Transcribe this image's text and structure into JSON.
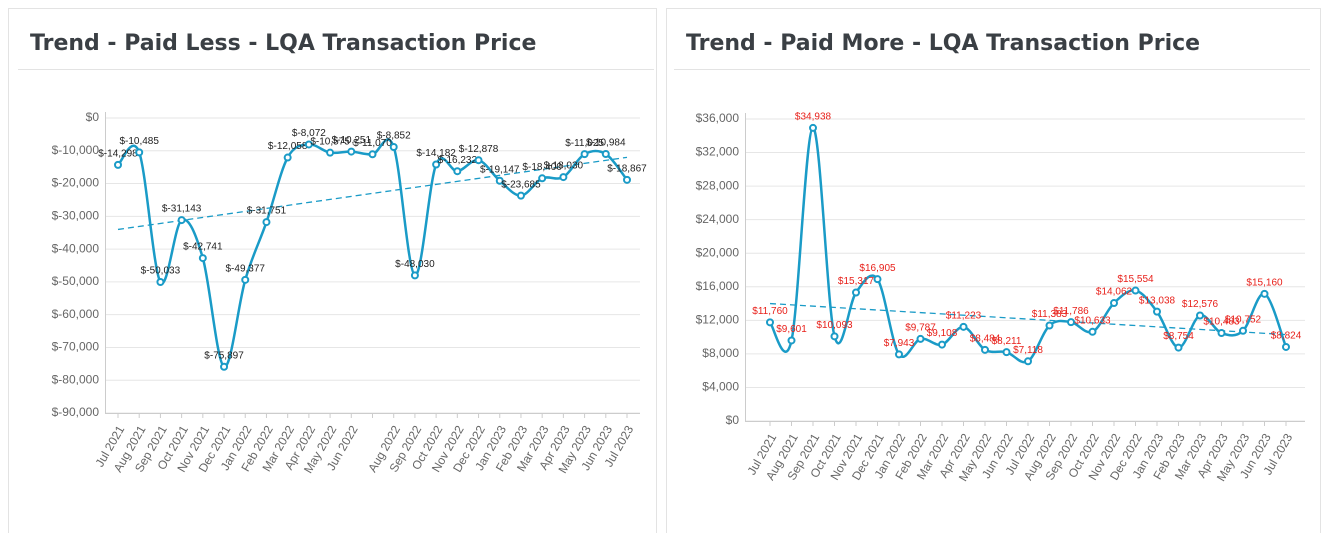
{
  "chart_data": [
    {
      "type": "line",
      "title": "Trend - Paid Less - LQA Transaction Price",
      "categories": [
        "Jul 2021",
        "Aug 2021",
        "Sep 2021",
        "Oct 2021",
        "Nov 2021",
        "Dec 2021",
        "Jan 2022",
        "Feb 2022",
        "Mar 2022",
        "Apr 2022",
        "May 2022",
        "Jun 2022",
        null,
        "Aug 2022",
        "Sep 2022",
        "Oct 2022",
        "Nov 2022",
        "Dec 2022",
        "Jan 2023",
        "Feb 2023",
        "Mar 2023",
        "Apr 2023",
        "May 2023",
        "Jun 2023",
        "Jul 2023"
      ],
      "values": [
        -14298,
        -10485,
        -50033,
        -31143,
        -42741,
        -75897,
        -49377,
        -31751,
        -12058,
        -8072,
        -10575,
        -10251,
        -11070,
        -8852,
        -48030,
        -14182,
        -16232,
        -12878,
        -19147,
        -23685,
        -18400,
        -18030,
        -11025,
        -10984,
        -18867
      ],
      "value_labels": [
        "$-14,298",
        "$-10,485",
        "$-50,033",
        "$-31,143",
        "$-42,741",
        "$-75,897",
        "$-49,377",
        "$-31,751",
        "$-12,058",
        "$-8,072",
        "$-10,575",
        "$-10,251",
        "$-11,070",
        "$-8,852",
        "$-48,030",
        "$-14,182",
        "$-16,232",
        "$-12,878",
        "$-19,147",
        "$-23,685",
        "$-18,400",
        "$-18,030",
        "$-11,025",
        "$-10,984",
        "$-18,867"
      ],
      "color": "#1a9bc7",
      "label_color": "#222222",
      "trend": [
        -34000,
        -12000
      ],
      "ylim": [
        -90000,
        0
      ],
      "yticks": [
        {
          "value": -90000,
          "label": "$-90,000"
        },
        {
          "value": -80000,
          "label": "$-80,000"
        },
        {
          "value": -70000,
          "label": "$-70,000"
        },
        {
          "value": -60000,
          "label": "$-60,000"
        },
        {
          "value": -50000,
          "label": "$-50,000"
        },
        {
          "value": -40000,
          "label": "$-40,000"
        },
        {
          "value": -30000,
          "label": "$-30,000"
        },
        {
          "value": -20000,
          "label": "$-20,000"
        },
        {
          "value": -10000,
          "label": "$-10,000"
        },
        {
          "value": 0,
          "label": "$0"
        }
      ],
      "grid": true
    },
    {
      "type": "line",
      "title": "Trend - Paid More - LQA Transaction Price",
      "categories": [
        "Jul 2021",
        "Aug 2021",
        "Sep 2021",
        "Oct 2021",
        "Nov 2021",
        "Dec 2021",
        "Jan 2022",
        "Feb 2022",
        "Mar 2022",
        "Apr 2022",
        "May 2022",
        "Jun 2022",
        "Jul 2022",
        "Aug 2022",
        "Sep 2022",
        "Oct 2022",
        "Nov 2022",
        "Dec 2022",
        "Jan 2023",
        "Feb 2023",
        "Mar 2023",
        "Apr 2023",
        "May 2023",
        "Jun 2023",
        "Jul 2023"
      ],
      "values": [
        11760,
        9601,
        34938,
        10093,
        15317,
        16905,
        7943,
        9787,
        9108,
        11223,
        8484,
        8211,
        7118,
        11383,
        11786,
        10633,
        14062,
        15554,
        13038,
        8754,
        12576,
        10483,
        10752,
        15160,
        8824
      ],
      "value_labels": [
        "$11,760",
        "$9,601",
        "$34,938",
        "$10,093",
        "$15,317",
        "$16,905",
        "$7,943",
        "$9,787",
        "$9,108",
        "$11,223",
        "$8,484",
        "$8,211",
        "$7,118",
        "$11,383",
        "$11,786",
        "$10,633",
        "$14,062",
        "$15,554",
        "$13,038",
        "$8,754",
        "$12,576",
        "$10,483",
        "$10,752",
        "$15,160",
        "$8,824"
      ],
      "color": "#1a9bc7",
      "label_color": "#e8201a",
      "trend": [
        14000,
        10300
      ],
      "ylim": [
        0,
        36000
      ],
      "yticks": [
        {
          "value": 0,
          "label": "$0"
        },
        {
          "value": 4000,
          "label": "$4,000"
        },
        {
          "value": 8000,
          "label": "$8,000"
        },
        {
          "value": 12000,
          "label": "$12,000"
        },
        {
          "value": 16000,
          "label": "$16,000"
        },
        {
          "value": 20000,
          "label": "$20,000"
        },
        {
          "value": 24000,
          "label": "$24,000"
        },
        {
          "value": 28000,
          "label": "$28,000"
        },
        {
          "value": 32000,
          "label": "$32,000"
        },
        {
          "value": 36000,
          "label": "$36,000"
        }
      ],
      "grid": true
    }
  ]
}
